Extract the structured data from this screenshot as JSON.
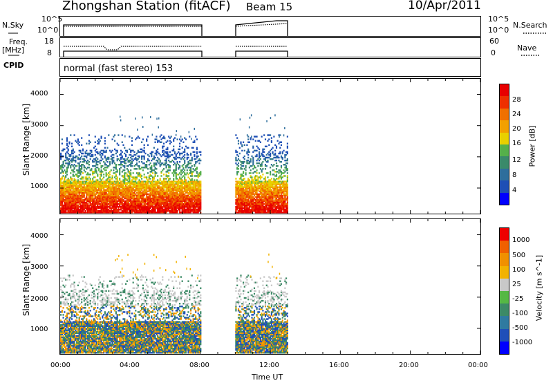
{
  "header": {
    "station_title": "Zhongshan Station (fitACF)",
    "beam": "Beam 15",
    "date": "10/Apr/2011"
  },
  "strip_labels": {
    "nsky": "N.Sky",
    "nsky_ticks": [
      "10^5",
      "10^0"
    ],
    "nsearch": "N.Search",
    "nsearch_ticks": [
      "10^5",
      "10^0"
    ],
    "freq_label": "Freq.",
    "freq_unit": "[MHz]",
    "freq_ticks": [
      "18",
      "8"
    ],
    "nave": "Nave",
    "nave_ticks": [
      "60",
      "0"
    ],
    "cpid": "CPID",
    "cpid_value": "normal (fast stereo) 153"
  },
  "colorbar_power": {
    "label": "Power [dB]",
    "ticks": [
      "28",
      "24",
      "20",
      "16",
      "12",
      "8",
      "4"
    ],
    "colors": [
      "#0000ff",
      "#1e4fb5",
      "#2e6e9c",
      "#3a8a6a",
      "#55b04a",
      "#e8d000",
      "#f2a000",
      "#f07000",
      "#ee3000",
      "#e80000"
    ]
  },
  "colorbar_velocity": {
    "label": "Velocity [m s^-1]",
    "ticks": [
      "1000",
      "500",
      "100",
      "25",
      "-25",
      "-100",
      "-500",
      "-1000"
    ],
    "colors": [
      "#0000ff",
      "#1f4fb8",
      "#2f7aa0",
      "#3c8a66",
      "#55b844",
      "#c8c8c8",
      "#f2b200",
      "#f09000",
      "#f06000",
      "#ee0000"
    ]
  },
  "chart_data": [
    {
      "type": "heatmap",
      "title": "Power",
      "ylabel": "Slant Range [km]",
      "xlabel": "",
      "y_ticks": [
        "1000",
        "2000",
        "3000",
        "4000"
      ],
      "ylim": [
        180,
        4500
      ],
      "xlim": [
        "00:00",
        "24:00"
      ],
      "data_intervals": [
        [
          "00:00",
          "08:00"
        ],
        [
          "10:00",
          "13:00"
        ]
      ],
      "colorbar": "Power [dB]"
    },
    {
      "type": "heatmap",
      "title": "Velocity",
      "ylabel": "Slant Range [km]",
      "xlabel": "Time UT",
      "x_ticks": [
        "00:00",
        "04:00",
        "08:00",
        "12:00",
        "16:00",
        "20:00",
        "00:00"
      ],
      "y_ticks": [
        "1000",
        "2000",
        "3000",
        "4000"
      ],
      "ylim": [
        180,
        4500
      ],
      "xlim": [
        "00:00",
        "24:00"
      ],
      "data_intervals": [
        [
          "00:00",
          "08:00"
        ],
        [
          "10:00",
          "13:00"
        ]
      ],
      "colorbar": "Velocity [m s^-1]"
    }
  ]
}
